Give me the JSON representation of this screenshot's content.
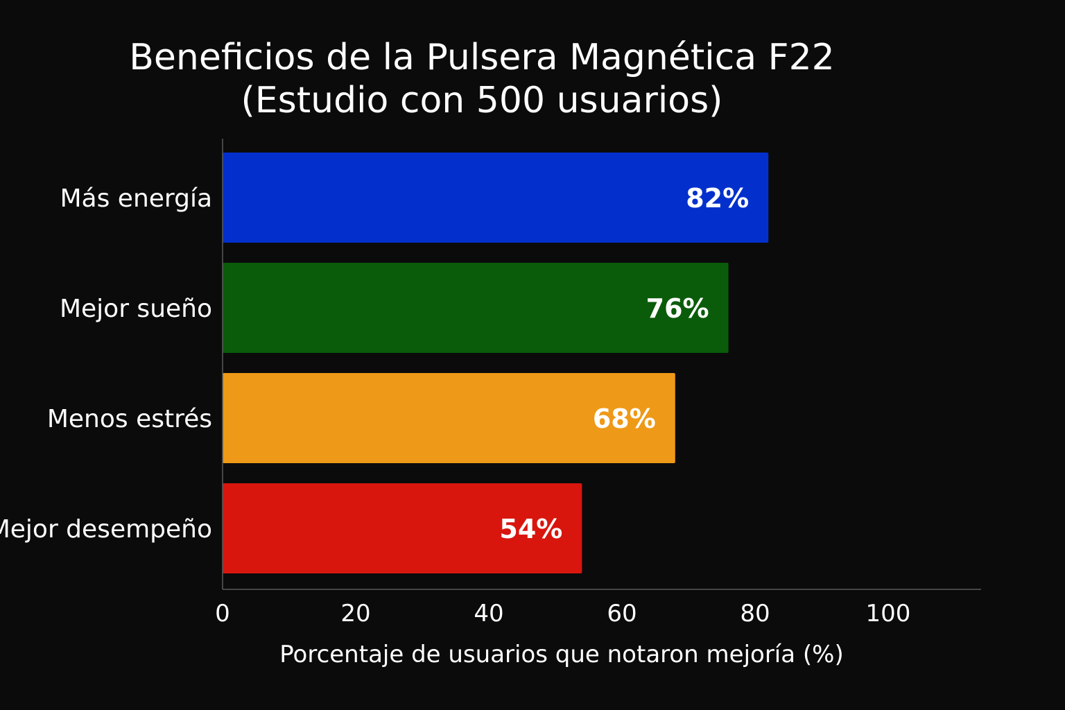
{
  "chart_data": {
    "type": "bar",
    "orientation": "horizontal",
    "title": "Beneficios de la Pulsera Magnética F22",
    "subtitle": "(Estudio con 500 usuarios)",
    "categories": [
      "Más energía",
      "Mejor sueño",
      "Menos estrés",
      "Mejor desempeño"
    ],
    "values": [
      82,
      76,
      68,
      54
    ],
    "data_labels": [
      "82%",
      "76%",
      "68%",
      "54%"
    ],
    "colors": [
      "#0330cc",
      "#0a5c0a",
      "#ee9917",
      "#d8160e"
    ],
    "xlabel": "Porcentaje de usuarios que notaron mejoría (%)",
    "ylabel": "",
    "xlim": [
      0,
      114
    ],
    "xticks": [
      0,
      20,
      40,
      60,
      80,
      100
    ],
    "grid": false,
    "legend": "none"
  }
}
